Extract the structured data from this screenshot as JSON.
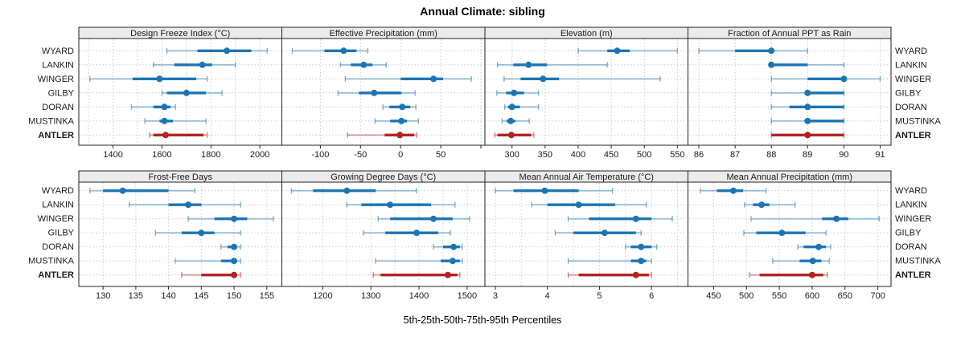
{
  "title": "Annual Climate: sibling",
  "caption": "5th-25th-50th-75th-95th Percentiles",
  "percentile_labels": [
    "5th",
    "25th",
    "50th",
    "75th",
    "95th"
  ],
  "stations": [
    "WYARD",
    "LANKIN",
    "WINGER",
    "GILBY",
    "DORAN",
    "MUSTINKA",
    "ANTLER"
  ],
  "highlight_station": "ANTLER",
  "colors": {
    "series_blue": "#1b75b4",
    "highlight_red": "#b22222",
    "strip_bg": "#ebebeb",
    "panel_border": "#222222",
    "grid": "#c9c9c9"
  },
  "chart_data": [
    {
      "type": "interval-dotplot",
      "title": "Design Freeze Index (°C)",
      "row": 0,
      "col": 0,
      "xlim": [
        1260,
        2090
      ],
      "ticks": [
        1400,
        1600,
        1800,
        2000
      ],
      "grid": [
        1300,
        1400,
        1500,
        1600,
        1700,
        1800,
        1900,
        2000
      ],
      "series": {
        "WYARD": [
          1620,
          1745,
          1865,
          1965,
          2030
        ],
        "LANKIN": [
          1565,
          1650,
          1765,
          1805,
          1900
        ],
        "WINGER": [
          1305,
          1480,
          1590,
          1740,
          1785
        ],
        "GILBY": [
          1600,
          1620,
          1700,
          1780,
          1845
        ],
        "DORAN": [
          1475,
          1565,
          1610,
          1635,
          1655
        ],
        "MUSTINKA": [
          1530,
          1590,
          1610,
          1645,
          1780
        ],
        "ANTLER": [
          1550,
          1565,
          1615,
          1770,
          1785
        ]
      }
    },
    {
      "type": "interval-dotplot",
      "title": "Effective Precipitation (mm)",
      "row": 0,
      "col": 1,
      "xlim": [
        -148,
        105
      ],
      "ticks": [
        -100,
        -50,
        0,
        50
      ],
      "extra_ticks": [
        100
      ],
      "grid": [
        -100,
        -50,
        0,
        50,
        100
      ],
      "series": {
        "WYARD": [
          -135,
          -95,
          -71,
          -55,
          -41
        ],
        "LANKIN": [
          -75,
          -62,
          -46,
          -35,
          -18
        ],
        "WINGER": [
          -69,
          0,
          41,
          53,
          88
        ],
        "GILBY": [
          -78,
          -52,
          -33,
          1,
          18
        ],
        "DORAN": [
          -22,
          -14,
          2,
          12,
          19
        ],
        "MUSTINKA": [
          -32,
          -13,
          1,
          8,
          22
        ],
        "ANTLER": [
          -66,
          -20,
          -1,
          17,
          20
        ]
      }
    },
    {
      "type": "interval-dotplot",
      "title": "Elevation (m)",
      "row": 0,
      "col": 2,
      "xlim": [
        259,
        566
      ],
      "ticks": [
        300,
        350,
        400,
        450,
        500,
        550
      ],
      "grid": [
        300,
        350,
        400,
        450,
        500,
        550
      ],
      "series": {
        "WYARD": [
          400,
          444,
          459,
          478,
          550
        ],
        "LANKIN": [
          278,
          302,
          325,
          353,
          444
        ],
        "WINGER": [
          288,
          313,
          347,
          371,
          524
        ],
        "GILBY": [
          277,
          291,
          303,
          318,
          340
        ],
        "DORAN": [
          289,
          294,
          300,
          312,
          340
        ],
        "MUSTINKA": [
          285,
          292,
          298,
          305,
          326
        ],
        "ANTLER": [
          274,
          278,
          299,
          329,
          333
        ]
      }
    },
    {
      "type": "interval-dotplot",
      "title": "Fraction of Annual PPT as Rain",
      "row": 0,
      "col": 3,
      "xlim": [
        85.7,
        91.3
      ],
      "ticks": [
        86,
        87,
        88,
        89,
        90,
        91
      ],
      "grid": [
        86,
        87,
        88,
        89,
        90,
        91
      ],
      "series": {
        "WYARD": [
          86,
          87,
          88,
          88,
          89
        ],
        "LANKIN": [
          88,
          88,
          88,
          89,
          90
        ],
        "WINGER": [
          88,
          89,
          90,
          90,
          91
        ],
        "GILBY": [
          88,
          89,
          89,
          90,
          90
        ],
        "DORAN": [
          88,
          88.5,
          89,
          90,
          90
        ],
        "MUSTINKA": [
          88,
          89,
          89,
          90,
          90
        ],
        "ANTLER": [
          88,
          88,
          89,
          90,
          90
        ]
      }
    },
    {
      "type": "interval-dotplot",
      "title": "Frost-Free Days",
      "row": 1,
      "col": 0,
      "xlim": [
        126.3,
        157.3
      ],
      "ticks": [
        130,
        135,
        140,
        145,
        150,
        155
      ],
      "grid": [
        130,
        135,
        140,
        145,
        150,
        155
      ],
      "series": {
        "WYARD": [
          128,
          130,
          133,
          140,
          144
        ],
        "LANKIN": [
          134,
          140,
          143,
          145,
          151
        ],
        "WINGER": [
          143,
          147,
          150,
          152,
          156
        ],
        "GILBY": [
          138,
          142,
          145,
          147,
          151
        ],
        "DORAN": [
          148,
          149,
          150,
          150,
          151
        ],
        "MUSTINKA": [
          141,
          148,
          150,
          150,
          151
        ],
        "ANTLER": [
          142,
          145,
          150,
          150,
          151
        ]
      }
    },
    {
      "type": "interval-dotplot",
      "title": "Growing Degree Days (°C)",
      "row": 1,
      "col": 1,
      "xlim": [
        1115,
        1537
      ],
      "ticks": [
        1200,
        1300,
        1400,
        1500
      ],
      "grid": [
        1150,
        1200,
        1250,
        1300,
        1350,
        1400,
        1450,
        1500
      ],
      "series": {
        "WYARD": [
          1135,
          1180,
          1250,
          1310,
          1395
        ],
        "LANKIN": [
          1250,
          1280,
          1340,
          1425,
          1475
        ],
        "WINGER": [
          1315,
          1340,
          1430,
          1470,
          1505
        ],
        "GILBY": [
          1285,
          1330,
          1395,
          1440,
          1465
        ],
        "DORAN": [
          1430,
          1450,
          1472,
          1485,
          1490
        ],
        "MUSTINKA": [
          1310,
          1445,
          1470,
          1485,
          1490
        ],
        "ANTLER": [
          1305,
          1320,
          1460,
          1480,
          1485
        ]
      }
    },
    {
      "type": "interval-dotplot",
      "title": "Mean Annual Air Temperature (°C)",
      "row": 1,
      "col": 2,
      "xlim": [
        2.8,
        6.7
      ],
      "ticks": [
        3,
        4,
        5,
        6
      ],
      "grid": [
        3,
        3.5,
        4,
        4.5,
        5,
        5.5,
        6,
        6.5
      ],
      "series": {
        "WYARD": [
          3.0,
          3.35,
          3.95,
          4.6,
          5.25
        ],
        "LANKIN": [
          3.7,
          4.0,
          4.6,
          5.3,
          5.9
        ],
        "WINGER": [
          4.4,
          4.8,
          5.7,
          6.0,
          6.4
        ],
        "GILBY": [
          4.15,
          4.5,
          5.1,
          5.7,
          5.8
        ],
        "DORAN": [
          5.5,
          5.6,
          5.8,
          6.0,
          6.1
        ],
        "MUSTINKA": [
          4.4,
          5.6,
          5.8,
          5.9,
          6.0
        ],
        "ANTLER": [
          4.4,
          4.6,
          5.7,
          5.95,
          6.0
        ]
      }
    },
    {
      "type": "interval-dotplot",
      "title": "Mean Annual Precipitation (mm)",
      "row": 1,
      "col": 3,
      "xlim": [
        411,
        720
      ],
      "ticks": [
        450,
        500,
        550,
        600,
        650,
        700
      ],
      "grid": [
        450,
        500,
        550,
        600,
        650,
        700
      ],
      "series": {
        "WYARD": [
          430,
          455,
          480,
          495,
          530
        ],
        "LANKIN": [
          497,
          510,
          523,
          535,
          574
        ],
        "WINGER": [
          507,
          615,
          637,
          655,
          702
        ],
        "GILBY": [
          496,
          515,
          554,
          590,
          621
        ],
        "DORAN": [
          578,
          587,
          610,
          621,
          628
        ],
        "MUSTINKA": [
          540,
          581,
          601,
          614,
          626
        ],
        "ANTLER": [
          505,
          520,
          600,
          617,
          623
        ]
      }
    }
  ]
}
